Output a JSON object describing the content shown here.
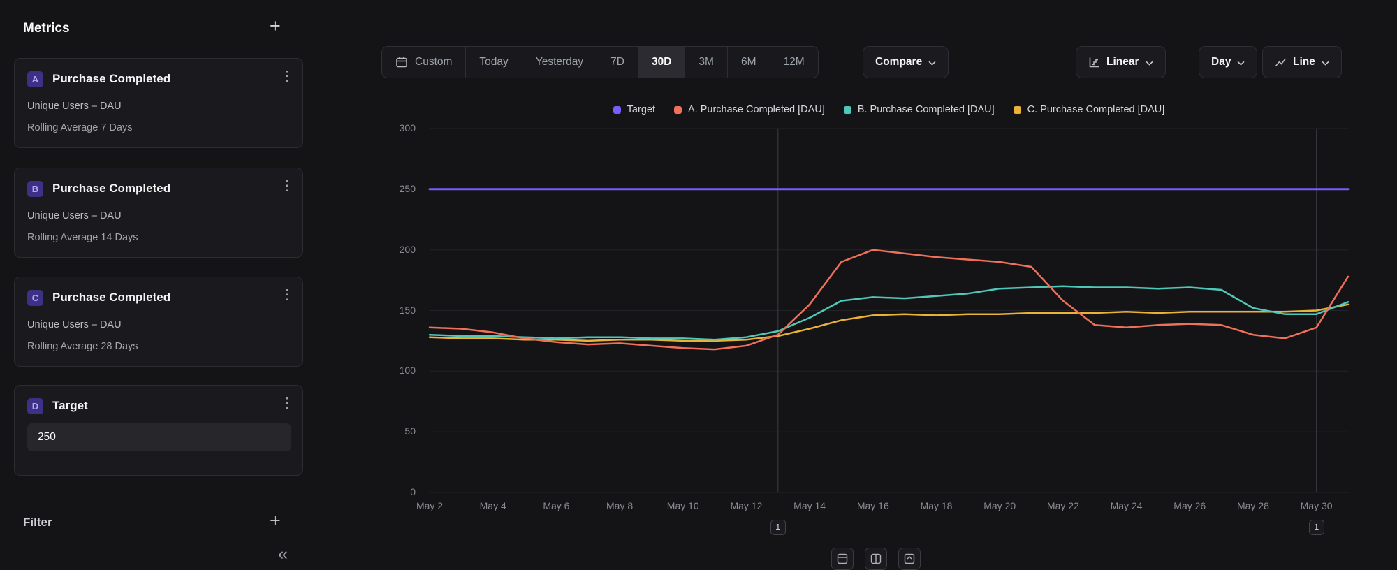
{
  "icons": {
    "plus": "+",
    "kebab": "⋮",
    "collapse": "«"
  },
  "sidebar": {
    "title": "Metrics",
    "metrics": [
      {
        "badge": "A",
        "title": "Purchase Completed",
        "line1": "Unique Users – DAU",
        "line2": "Rolling Average 7 Days"
      },
      {
        "badge": "B",
        "title": "Purchase Completed",
        "line1": "Unique Users – DAU",
        "line2": "Rolling Average 14 Days"
      },
      {
        "badge": "C",
        "title": "Purchase Completed",
        "line1": "Unique Users – DAU",
        "line2": "Rolling Average 28 Days"
      }
    ],
    "target_card": {
      "badge": "D",
      "title": "Target",
      "value": "250"
    },
    "filter_label": "Filter"
  },
  "toolbar": {
    "range_buttons": [
      {
        "label": "Custom"
      },
      {
        "label": "Today"
      },
      {
        "label": "Yesterday"
      },
      {
        "label": "7D"
      },
      {
        "label": "30D",
        "active": true
      },
      {
        "label": "3M"
      },
      {
        "label": "6M"
      },
      {
        "label": "12M"
      }
    ],
    "compare_label": "Compare",
    "scale_label": "Linear",
    "granularity_label": "Day",
    "chart_type_label": "Line"
  },
  "legend": [
    {
      "label": "Target",
      "color": "#755ff8"
    },
    {
      "label": "A. Purchase Completed [DAU]",
      "color": "#f0705a"
    },
    {
      "label": "B. Purchase Completed [DAU]",
      "color": "#4fc8ba"
    },
    {
      "label": "C. Purchase Completed [DAU]",
      "color": "#eab236"
    }
  ],
  "chart_data": {
    "type": "line",
    "x": [
      "May 2",
      "May 3",
      "May 4",
      "May 5",
      "May 6",
      "May 7",
      "May 8",
      "May 9",
      "May 10",
      "May 11",
      "May 12",
      "May 13",
      "May 14",
      "May 15",
      "May 16",
      "May 17",
      "May 18",
      "May 19",
      "May 20",
      "May 21",
      "May 22",
      "May 23",
      "May 24",
      "May 25",
      "May 26",
      "May 27",
      "May 28",
      "May 29",
      "May 30",
      "May 31"
    ],
    "x_tick_labels": [
      "May 2",
      "May 4",
      "May 6",
      "May 8",
      "May 10",
      "May 12",
      "May 14",
      "May 16",
      "May 18",
      "May 20",
      "May 22",
      "May 24",
      "May 26",
      "May 28",
      "May 30"
    ],
    "ylim": [
      0,
      300
    ],
    "y_ticks": [
      0,
      50,
      100,
      150,
      200,
      250,
      300
    ],
    "grid": true,
    "legend_position": "top",
    "series": [
      {
        "name": "Target",
        "color": "#755ff8",
        "values": [
          250,
          250,
          250,
          250,
          250,
          250,
          250,
          250,
          250,
          250,
          250,
          250,
          250,
          250,
          250,
          250,
          250,
          250,
          250,
          250,
          250,
          250,
          250,
          250,
          250,
          250,
          250,
          250,
          250,
          250
        ]
      },
      {
        "name": "A. Purchase Completed [DAU]",
        "color": "#f0705a",
        "values": [
          136,
          135,
          132,
          127,
          124,
          122,
          123,
          121,
          119,
          118,
          121,
          130,
          155,
          190,
          200,
          197,
          194,
          192,
          190,
          186,
          158,
          138,
          136,
          138,
          139,
          138,
          130,
          127,
          136,
          178
        ]
      },
      {
        "name": "B. Purchase Completed [DAU]",
        "color": "#4fc8ba",
        "values": [
          130,
          129,
          129,
          128,
          127,
          128,
          128,
          127,
          127,
          126,
          128,
          133,
          144,
          158,
          161,
          160,
          162,
          164,
          168,
          169,
          170,
          169,
          169,
          168,
          169,
          167,
          152,
          147,
          147,
          157
        ]
      },
      {
        "name": "C. Purchase Completed [DAU]",
        "color": "#eab236",
        "values": [
          128,
          127,
          127,
          126,
          126,
          125,
          126,
          126,
          125,
          125,
          126,
          129,
          135,
          142,
          146,
          147,
          146,
          147,
          147,
          148,
          148,
          148,
          149,
          148,
          149,
          149,
          149,
          149,
          150,
          155
        ]
      }
    ],
    "annotation_lines": [
      {
        "x": "May 13",
        "label": "1"
      },
      {
        "x": "May 30",
        "label": "1"
      }
    ]
  }
}
